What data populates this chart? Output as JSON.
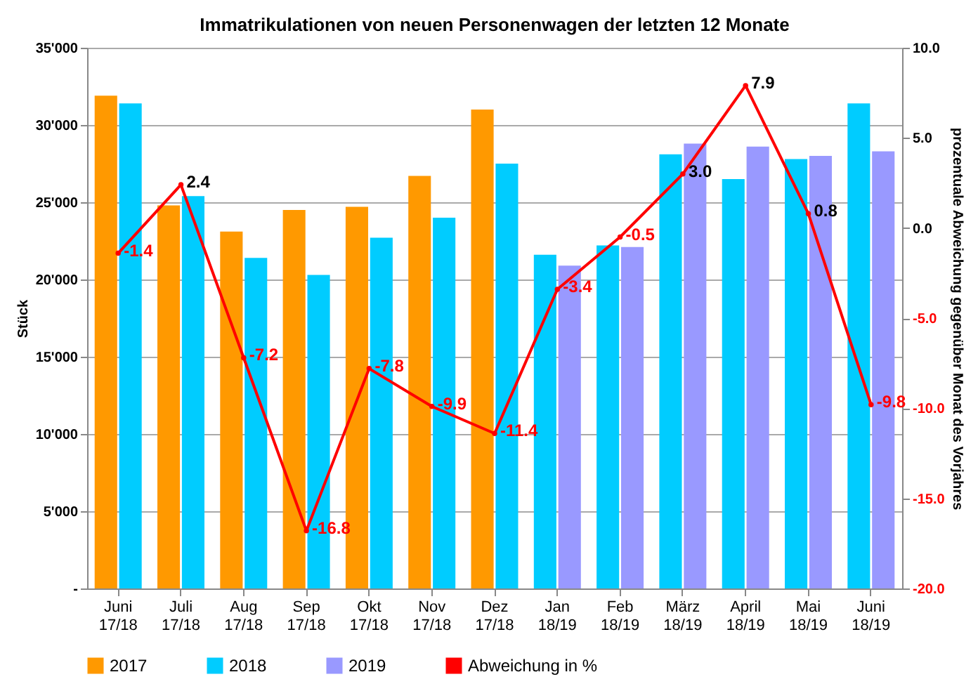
{
  "chart_data": {
    "type": "bar",
    "title": "Immatrikulationen von neuen Personenwagen der letzten 12 Monate",
    "categories": [
      "Juni 17/18",
      "Juli 17/18",
      "Aug 17/18",
      "Sep 17/18",
      "Okt 17/18",
      "Nov 17/18",
      "Dez 17/18",
      "Jan 18/19",
      "Feb 18/19",
      "März 18/19",
      "April 18/19",
      "Mai 18/19",
      "Juni 18/19"
    ],
    "series": [
      {
        "name": "2017",
        "color": "#ff9900",
        "values": [
          31900,
          24800,
          23100,
          24500,
          24700,
          26700,
          31000,
          null,
          null,
          null,
          null,
          null,
          null
        ]
      },
      {
        "name": "2018",
        "color": "#00ccff",
        "values": [
          31400,
          25400,
          21400,
          20300,
          22700,
          24000,
          27500,
          21600,
          22200,
          28100,
          26500,
          27800,
          31400
        ]
      },
      {
        "name": "2019",
        "color": "#9999ff",
        "values": [
          null,
          null,
          null,
          null,
          null,
          null,
          null,
          20900,
          22100,
          28800,
          28600,
          28000,
          28300
        ]
      },
      {
        "name": "Abweichung in %",
        "type": "line",
        "axis": "y2",
        "color": "#ff0000",
        "marker": "circle",
        "values": [
          -1.4,
          2.4,
          -7.2,
          -16.8,
          -7.8,
          -9.9,
          -11.4,
          -3.4,
          -0.5,
          3.0,
          7.9,
          0.8,
          -9.8
        ],
        "value_labels": [
          "-1.4",
          "2.4",
          "-7.2",
          "-16.8",
          "-7.8",
          "-9.9",
          "-11.4",
          "-3.4",
          "-0.5",
          "3.0",
          "7.9",
          "0.8",
          "-9.8"
        ]
      }
    ],
    "ylabel": "Stück",
    "y2label": "prozentuale Abweichung gegenüber Monat des Vorjahres",
    "ylim": [
      0,
      35000
    ],
    "yticks": [
      {
        "value": 0,
        "label": "-"
      },
      {
        "value": 5000,
        "label": "5'000"
      },
      {
        "value": 10000,
        "label": "10'000"
      },
      {
        "value": 15000,
        "label": "15'000"
      },
      {
        "value": 20000,
        "label": "20'000"
      },
      {
        "value": 25000,
        "label": "25'000"
      },
      {
        "value": 30000,
        "label": "30'000"
      },
      {
        "value": 35000,
        "label": "35'000"
      }
    ],
    "y2lim": [
      -20,
      10
    ],
    "y2ticks": [
      {
        "value": -20,
        "label": "-20.0"
      },
      {
        "value": -15,
        "label": "-15.0"
      },
      {
        "value": -10,
        "label": "-10.0"
      },
      {
        "value": -5,
        "label": "-5.0"
      },
      {
        "value": 0,
        "label": "0.0"
      },
      {
        "value": 5,
        "label": "5.0"
      },
      {
        "value": 10,
        "label": "10.0"
      }
    ],
    "grid": "y",
    "legend": "bottom"
  }
}
